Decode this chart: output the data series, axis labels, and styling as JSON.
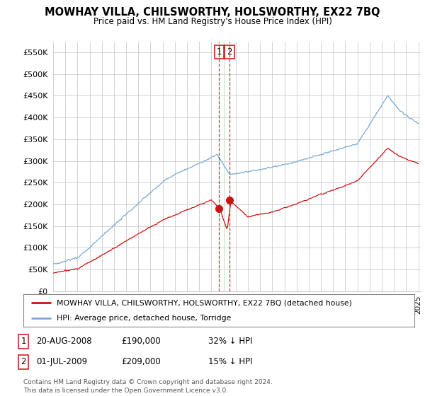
{
  "title": "MOWHAY VILLA, CHILSWORTHY, HOLSWORTHY, EX22 7BQ",
  "subtitle": "Price paid vs. HM Land Registry's House Price Index (HPI)",
  "ylim": [
    0,
    575000
  ],
  "yticks": [
    0,
    50000,
    100000,
    150000,
    200000,
    250000,
    300000,
    350000,
    400000,
    450000,
    500000,
    550000
  ],
  "ytick_labels": [
    "£0",
    "£50K",
    "£100K",
    "£150K",
    "£200K",
    "£250K",
    "£300K",
    "£350K",
    "£400K",
    "£450K",
    "£500K",
    "£550K"
  ],
  "hpi_color": "#7aaad4",
  "price_color": "#cc1111",
  "sale1_date": 2008.63,
  "sale1_price": 190000,
  "sale2_date": 2009.5,
  "sale2_price": 209000,
  "vline_color": "#cc1111",
  "legend_label1": "MOWHAY VILLA, CHILSWORTHY, HOLSWORTHY, EX22 7BQ (detached house)",
  "legend_label2": "HPI: Average price, detached house, Torridge",
  "annotation1": [
    "1",
    "20-AUG-2008",
    "£190,000",
    "32% ↓ HPI"
  ],
  "annotation2": [
    "2",
    "01-JUL-2009",
    "£209,000",
    "15% ↓ HPI"
  ],
  "footnote": "Contains HM Land Registry data © Crown copyright and database right 2024.\nThis data is licensed under the Open Government Licence v3.0.",
  "bg_color": "#ffffff",
  "grid_color": "#cccccc"
}
